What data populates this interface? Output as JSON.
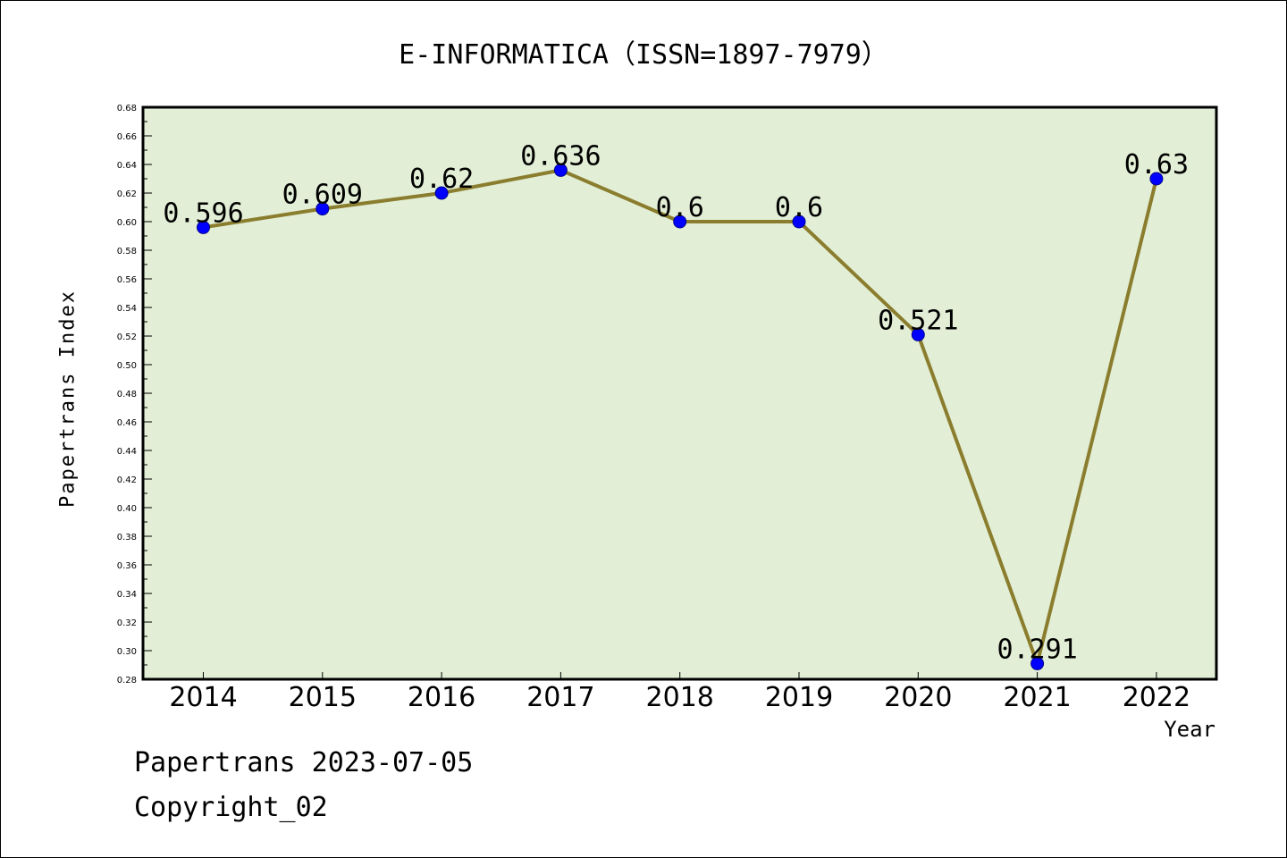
{
  "header": {
    "title": "E-INFORMATICA（ISSN=1897-7979）"
  },
  "footer": {
    "line1": "Papertrans 2023-07-05",
    "line2": "Copyright_02"
  },
  "colors": {
    "plot_background": "#e2efd6",
    "line": "#8b7d2e",
    "marker": "#0000ff"
  },
  "chart_data": {
    "type": "line",
    "title": "E-INFORMATICA（ISSN=1897-7979）",
    "xlabel": "Year",
    "ylabel": "Papertrans Index",
    "categories": [
      "2014",
      "2015",
      "2016",
      "2017",
      "2018",
      "2019",
      "2020",
      "2021",
      "2022"
    ],
    "values": [
      0.596,
      0.609,
      0.62,
      0.636,
      0.6,
      0.6,
      0.521,
      0.291,
      0.63
    ],
    "data_labels": [
      "0.596",
      "0.609",
      "0.62",
      "0.636",
      "0.6",
      "0.6",
      "0.521",
      "0.291",
      "0.63"
    ],
    "ylim": [
      0.28,
      0.68
    ],
    "y_ticks": [
      "0.28",
      "0.30",
      "0.32",
      "0.34",
      "0.36",
      "0.38",
      "0.40",
      "0.42",
      "0.44",
      "0.46",
      "0.48",
      "0.50",
      "0.52",
      "0.54",
      "0.56",
      "0.58",
      "0.60",
      "0.62",
      "0.64",
      "0.66",
      "0.68"
    ],
    "grid": false,
    "legend": "none"
  }
}
